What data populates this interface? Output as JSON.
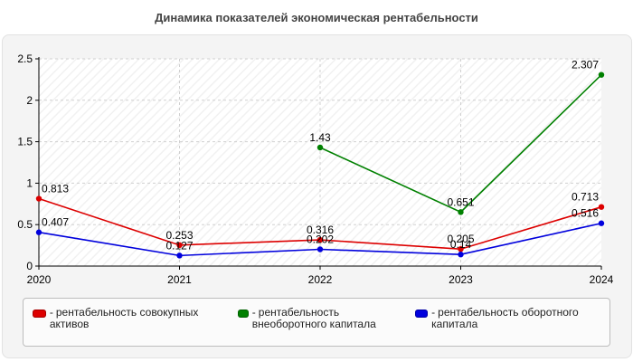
{
  "chart_data": {
    "type": "line",
    "title": "Динамика показателей экономическая рентабельности",
    "categories": [
      "2020",
      "2021",
      "2022",
      "2023",
      "2024"
    ],
    "ylim": [
      0,
      2.5
    ],
    "yticks": [
      "0",
      "0.5",
      "1",
      "1.5",
      "2",
      "2.5"
    ],
    "grid": true,
    "legend_position": "bottom",
    "series": [
      {
        "name": "рентабельность совокупных активов",
        "color": "#dd0000",
        "values": [
          0.813,
          0.253,
          0.316,
          0.205,
          0.713
        ],
        "labels": [
          "0.813",
          "0.253",
          "0.316",
          "0.205",
          "0.713"
        ]
      },
      {
        "name": "рентабельность внеоборотного капитала",
        "color": "#008000",
        "values": [
          null,
          null,
          1.43,
          0.651,
          2.307
        ],
        "labels": [
          "",
          "",
          "1.43",
          "0.651",
          "2.307"
        ]
      },
      {
        "name": "рентабельность оборотного капитала",
        "color": "#0000dd",
        "values": [
          0.407,
          0.127,
          0.202,
          0.14,
          0.516
        ],
        "labels": [
          "0.407",
          "0.127",
          "0.202",
          "0.14",
          "0.516"
        ]
      }
    ]
  },
  "legend": {
    "dash": "-"
  }
}
